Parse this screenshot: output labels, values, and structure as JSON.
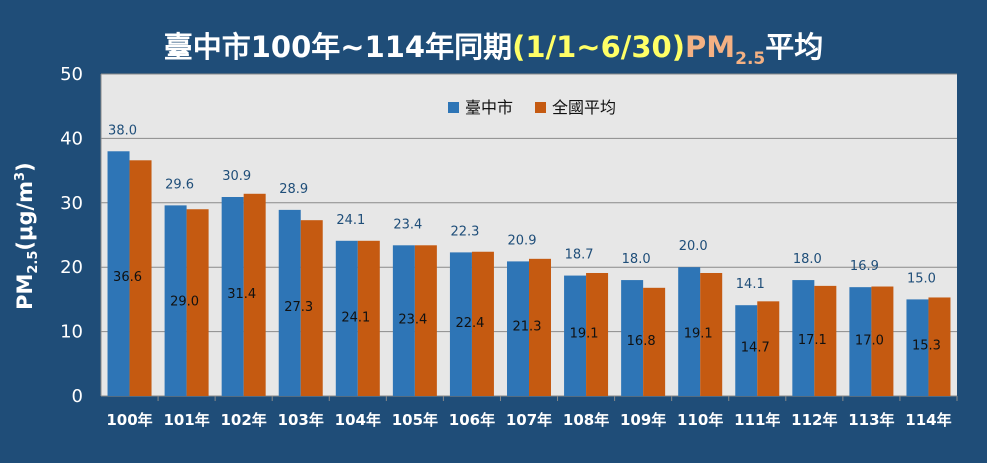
{
  "chart_data": {
    "type": "bar",
    "title": {
      "part1": "臺中市100年~114年同期",
      "part2": "(1/1~6/30)",
      "part3_main": "PM",
      "part3_sub": "2.5",
      "part4": "平均"
    },
    "ylabel": {
      "main": "PM",
      "sub": "2.5",
      "mid": "(μg/m",
      "sup": "3",
      "end": ")"
    },
    "xlabel": "",
    "ylim": [
      0,
      50
    ],
    "yticks": [
      "0",
      "10",
      "20",
      "30",
      "40",
      "50"
    ],
    "grid": true,
    "legend_position": "top-center",
    "categories": [
      "100年",
      "101年",
      "102年",
      "103年",
      "104年",
      "105年",
      "106年",
      "107年",
      "108年",
      "109年",
      "110年",
      "111年",
      "112年",
      "113年",
      "114年"
    ],
    "series": [
      {
        "name": "臺中市",
        "color": "#2e75b6",
        "values": [
          38.0,
          29.6,
          30.9,
          28.9,
          24.1,
          23.4,
          22.3,
          20.9,
          18.7,
          18.0,
          20.0,
          14.1,
          18.0,
          16.9,
          15.0
        ]
      },
      {
        "name": "全國平均",
        "color": "#c55a11",
        "values": [
          36.6,
          29.0,
          31.4,
          27.3,
          24.1,
          23.4,
          22.4,
          21.3,
          19.1,
          16.8,
          19.1,
          14.7,
          17.1,
          17.0,
          15.3
        ]
      }
    ]
  }
}
